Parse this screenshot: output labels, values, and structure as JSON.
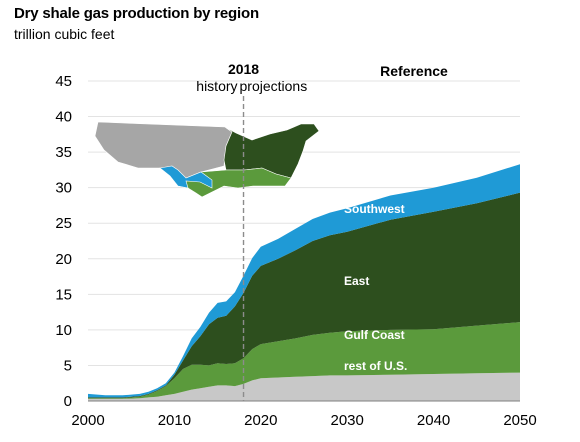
{
  "chart_data": {
    "type": "area",
    "title": "Dry shale gas production by region",
    "subtitle": "trillion cubic feet",
    "xlabel": "",
    "ylabel": "",
    "xlim": [
      2000,
      2050
    ],
    "ylim": [
      0,
      45
    ],
    "x_ticks": [
      2000,
      2010,
      2020,
      2030,
      2040,
      2050
    ],
    "y_ticks": [
      0,
      5,
      10,
      15,
      20,
      25,
      30,
      35,
      40,
      45
    ],
    "stacked": true,
    "grid": "horizontal",
    "x": [
      2000,
      2002,
      2004,
      2006,
      2007,
      2008,
      2009,
      2010,
      2011,
      2012,
      2013,
      2014,
      2015,
      2016,
      2017,
      2018,
      2019,
      2020,
      2022,
      2024,
      2026,
      2028,
      2030,
      2035,
      2040,
      2045,
      2050
    ],
    "series": [
      {
        "name": "rest of U.S.",
        "color": "#c8c8c8",
        "values": [
          0.3,
          0.3,
          0.3,
          0.4,
          0.5,
          0.6,
          0.8,
          1.0,
          1.3,
          1.6,
          1.8,
          2.0,
          2.2,
          2.2,
          2.1,
          2.4,
          2.9,
          3.2,
          3.3,
          3.4,
          3.5,
          3.6,
          3.6,
          3.7,
          3.8,
          3.9,
          4.0
        ]
      },
      {
        "name": "Gulf Coast",
        "color": "#5b9a3c",
        "values": [
          0.1,
          0.1,
          0.1,
          0.2,
          0.4,
          0.8,
          1.3,
          2.2,
          3.2,
          3.5,
          3.3,
          3.0,
          3.1,
          3.0,
          3.2,
          3.6,
          4.4,
          4.8,
          5.1,
          5.4,
          5.8,
          6.0,
          6.2,
          6.3,
          6.3,
          6.7,
          7.1
        ]
      },
      {
        "name": "East",
        "color": "#2d4f1e",
        "values": [
          0.1,
          0.1,
          0.1,
          0.1,
          0.1,
          0.1,
          0.1,
          0.5,
          1.2,
          2.6,
          4.0,
          5.8,
          6.4,
          6.8,
          8.0,
          9.2,
          10.3,
          11.0,
          11.6,
          12.4,
          13.2,
          13.7,
          14.0,
          15.5,
          16.5,
          17.2,
          18.2
        ]
      },
      {
        "name": "Southwest",
        "color": "#1f9ad6",
        "values": [
          0.5,
          0.3,
          0.3,
          0.3,
          0.3,
          0.3,
          0.3,
          0.3,
          0.6,
          1.1,
          1.3,
          1.6,
          2.1,
          2.0,
          2.0,
          2.4,
          2.5,
          2.7,
          2.8,
          3.0,
          3.1,
          3.2,
          3.3,
          3.4,
          3.4,
          3.6,
          4.0
        ]
      }
    ],
    "annotations": {
      "year_marker": 2018,
      "year_label": "2018",
      "left_label": "history",
      "right_label": "projections",
      "case_label": "Reference"
    },
    "map_colors": {
      "rest_of_us": "#a6a6a6",
      "east": "#2d4f1e",
      "gulf_coast": "#5b9a3c",
      "southwest": "#1f9ad6"
    }
  }
}
